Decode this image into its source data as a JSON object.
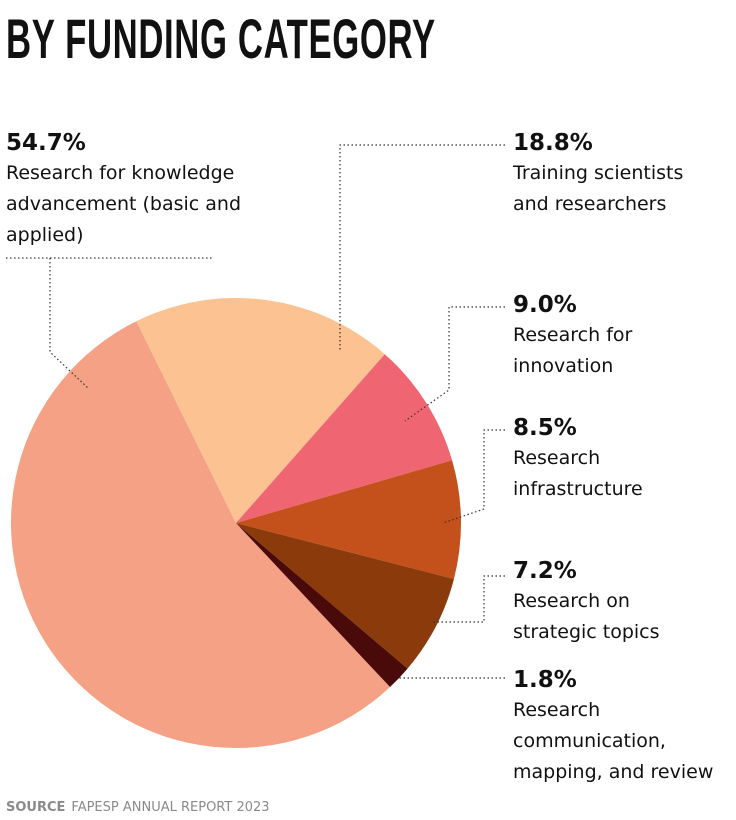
{
  "chart_data": {
    "type": "pie",
    "title": "BY FUNDING CATEGORY",
    "categories": [
      "Research for knowledge advancement (basic and applied)",
      "Training scientists and researchers",
      "Research for innovation",
      "Research infrastructure",
      "Research on strategic topics",
      "Research communication, mapping, and review"
    ],
    "values": [
      54.7,
      18.8,
      9.0,
      8.5,
      7.2,
      1.8
    ],
    "value_labels": [
      "54.7%",
      "18.8%",
      "9.0%",
      "8.5%",
      "7.2%",
      "1.8%"
    ],
    "colors": [
      "#f4a185",
      "#fdc291",
      "#ef6571",
      "#c4501b",
      "#8a3a0b",
      "#4a0a0a"
    ],
    "source_label": "SOURCE",
    "source": "FAPESP ANNUAL REPORT 2023"
  }
}
